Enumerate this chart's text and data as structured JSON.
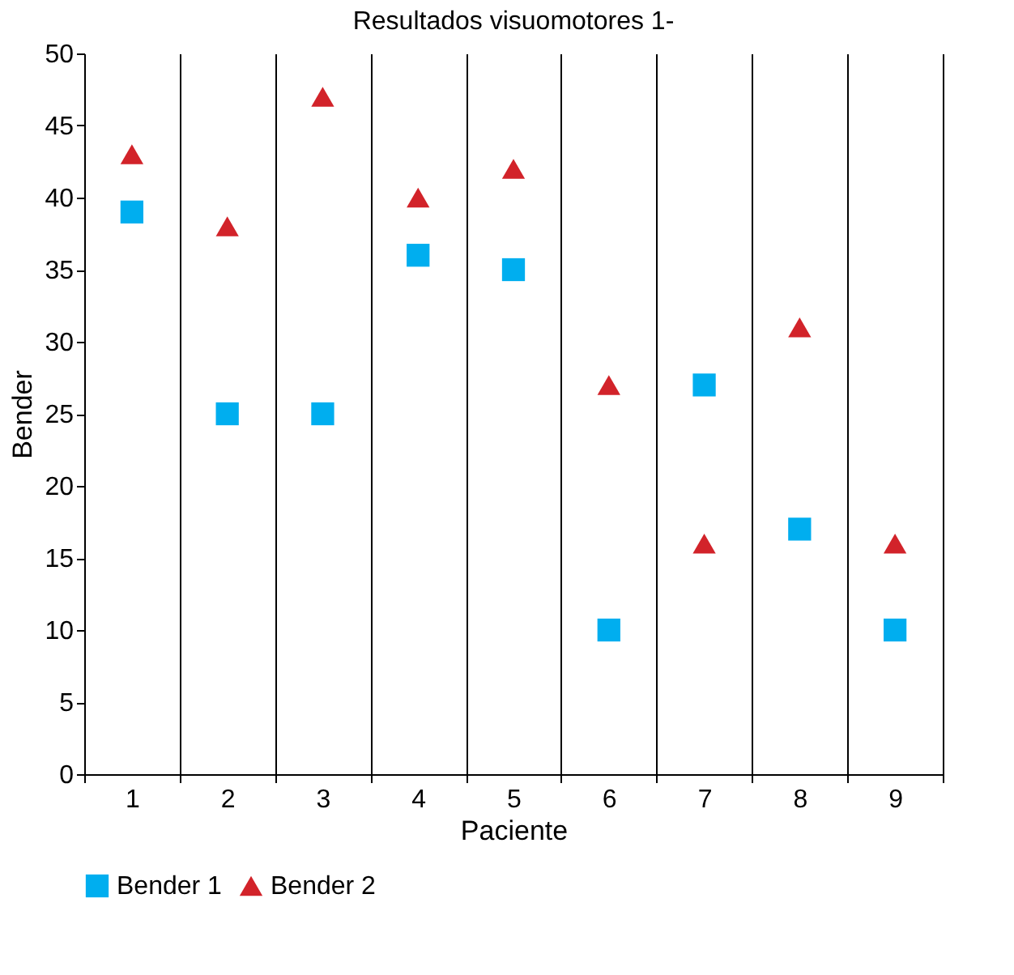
{
  "chart_data": {
    "type": "scatter",
    "title": "Resultados visuomotores 1-",
    "xlabel": "Paciente",
    "ylabel": "Bender",
    "categories": [
      "1",
      "2",
      "3",
      "4",
      "5",
      "6",
      "7",
      "8",
      "9"
    ],
    "series": [
      {
        "name": "Bender 1",
        "color": "#00aeef",
        "marker": "square",
        "values": [
          39,
          25,
          25,
          36,
          35,
          10,
          27,
          17,
          10
        ]
      },
      {
        "name": "Bender 2",
        "color": "#d2232a",
        "marker": "triangle",
        "values": [
          43,
          38,
          47,
          40,
          42,
          27,
          16,
          31,
          16
        ]
      }
    ],
    "ylim": [
      0,
      50
    ],
    "yticks": [
      0,
      5,
      10,
      15,
      20,
      25,
      30,
      35,
      40,
      45,
      50
    ],
    "grid": "x",
    "legend": "bottom"
  }
}
